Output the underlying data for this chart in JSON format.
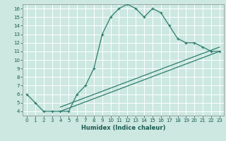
{
  "title": "",
  "xlabel": "Humidex (Indice chaleur)",
  "bg_color": "#cce8e0",
  "grid_color": "#ffffff",
  "line_color": "#2e7d6e",
  "xlim": [
    -0.5,
    23.5
  ],
  "ylim": [
    3.5,
    16.5
  ],
  "xticks": [
    0,
    1,
    2,
    3,
    4,
    5,
    6,
    7,
    8,
    9,
    10,
    11,
    12,
    13,
    14,
    15,
    16,
    17,
    18,
    19,
    20,
    21,
    22,
    23
  ],
  "yticks": [
    4,
    5,
    6,
    7,
    8,
    9,
    10,
    11,
    12,
    13,
    14,
    15,
    16
  ],
  "line1_x": [
    0,
    1,
    2,
    3,
    4,
    5,
    6,
    7,
    8,
    9,
    10,
    11,
    12,
    13,
    14,
    15,
    16,
    17,
    18,
    19,
    20,
    21,
    22,
    23
  ],
  "line1_y": [
    6,
    5,
    4,
    4,
    4,
    4,
    6,
    7,
    9,
    13,
    15,
    16,
    16.5,
    16,
    15,
    16,
    15.5,
    14,
    12.5,
    12,
    12,
    11.5,
    11,
    11
  ],
  "line2_x": [
    4,
    23
  ],
  "line2_y": [
    4,
    11
  ],
  "line3_x": [
    4,
    23
  ],
  "line3_y": [
    4.5,
    11.5
  ]
}
